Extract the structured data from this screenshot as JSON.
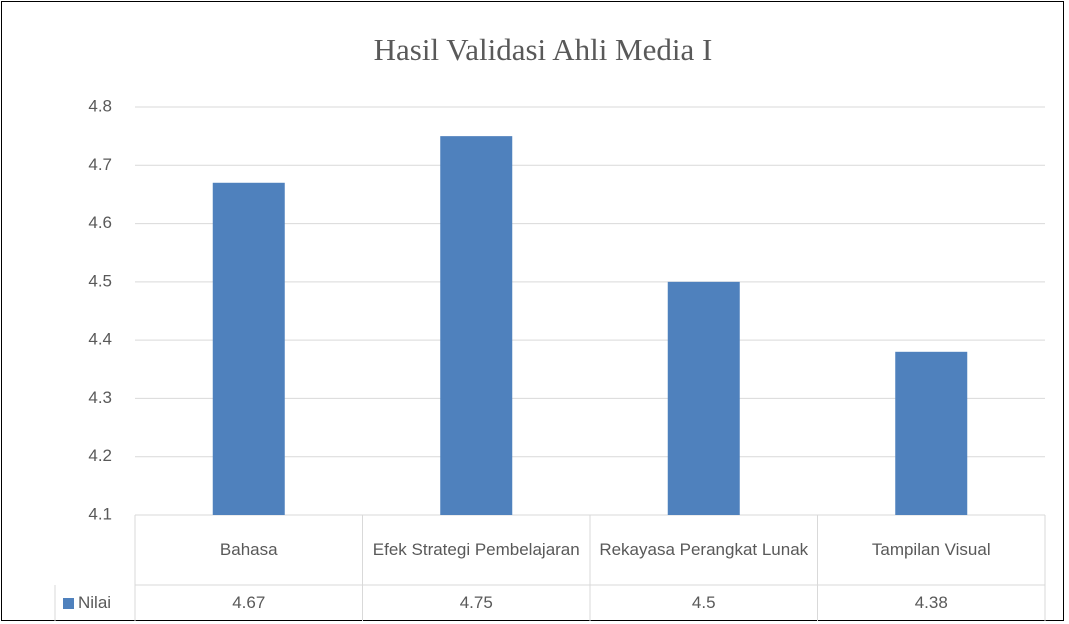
{
  "chart_data": {
    "type": "bar",
    "title": "Hasil Validasi Ahli Media I",
    "categories": [
      "Bahasa",
      "Efek Strategi Pembelajaran",
      "Rekayasa Perangkat Lunak",
      "Tampilan Visual"
    ],
    "series": [
      {
        "name": "Nilai",
        "color": "#4f81bd",
        "values": [
          4.67,
          4.75,
          4.5,
          4.38
        ]
      }
    ],
    "ylim": [
      4.1,
      4.8
    ],
    "yticks": [
      4.1,
      4.2,
      4.3,
      4.4,
      4.5,
      4.6,
      4.7,
      4.8
    ],
    "grid": true
  }
}
